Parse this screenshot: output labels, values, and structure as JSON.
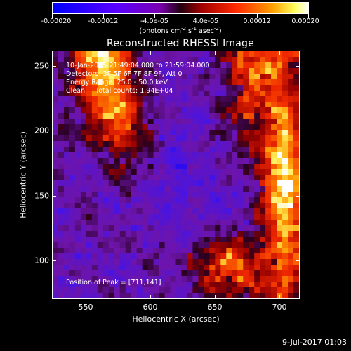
{
  "colorbar": {
    "ticks": [
      "-0.00020",
      "-0.00012",
      "-4.0e-05",
      "4.0e-05",
      "0.00012",
      "0.00020"
    ],
    "unit_prefix": "(photons cm",
    "unit_exp1": "-2",
    "unit_mid": " s",
    "unit_exp2": "-1",
    "unit_mid2": " asec",
    "unit_exp3": "-2",
    "unit_suffix": ")"
  },
  "title": "Reconstructed RHESSI Image",
  "info": {
    "time_range": "10-Jan-2015 21:49:04.000 to 21:59:04.000",
    "detectors": "Detectors: 3F 5F 6F 7F 8F 9F, Att 0",
    "energy": "Energy Range: 25.0 - 50.0 keV",
    "clean": "Clean     Total counts: 1.94E+04",
    "peak": "Position of Peak = [711,141]"
  },
  "chart_data": {
    "type": "heatmap",
    "title": "Reconstructed RHESSI Image",
    "xlabel": "Heliocentric X (arcsec)",
    "ylabel": "Heliocentric Y (arcsec)",
    "xlim": [
      524,
      716
    ],
    "ylim": [
      70,
      262
    ],
    "x_ticks": [
      550,
      600,
      650,
      700
    ],
    "y_ticks": [
      100,
      150,
      200,
      250
    ],
    "x_tick_labels": [
      "550",
      "600",
      "650",
      "700"
    ],
    "y_tick_labels": [
      "100",
      "150",
      "200",
      "250"
    ],
    "colorbar_range": [
      -0.0002,
      0.0002
    ],
    "colormap": "blue-purple-red-yellow-white",
    "grid": false,
    "peak_position": [
      711,
      141
    ]
  },
  "footer": {
    "timestamp": "9-Jul-2017 01:03"
  }
}
